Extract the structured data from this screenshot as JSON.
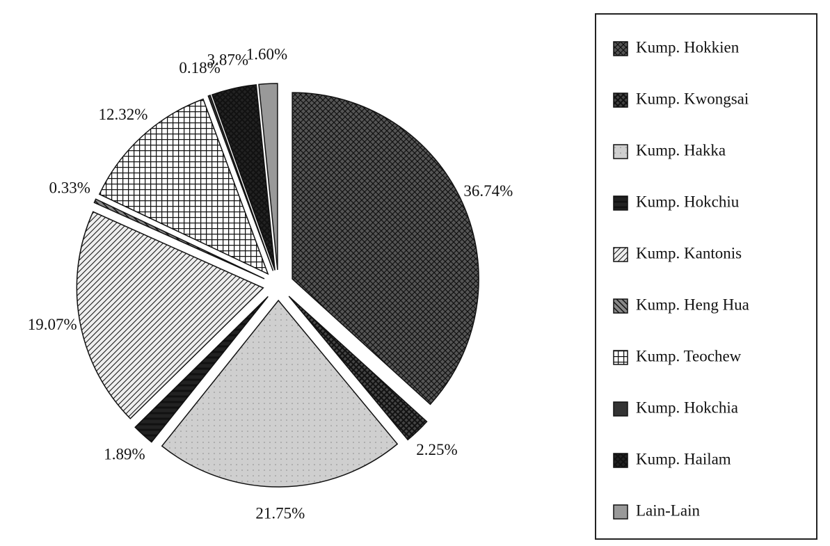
{
  "chart_data": {
    "type": "pie",
    "categories": [
      "Kump. Hokkien",
      "Kump. Kwongsai",
      "Kump. Hakka",
      "Kump. Hokchiu",
      "Kump. Kantonis",
      "Kump. Heng Hua",
      "Kump. Teochew",
      "Kump. Hokchia",
      "Kump. Hailam",
      "Lain-Lain"
    ],
    "values": [
      36.74,
      2.25,
      21.75,
      1.89,
      19.07,
      0.33,
      12.32,
      0.18,
      3.87,
      1.6
    ],
    "value_labels": [
      "36.74%",
      "2.25%",
      "21.75%",
      "1.89%",
      "19.07%",
      "0.33%",
      "12.32%",
      "0.18%",
      "3.87%",
      "1.60%"
    ],
    "colors": [
      "#555555",
      "#444444",
      "#cfcfcf",
      "#222222",
      "#eeeeee",
      "#888888",
      "#ffffff",
      "#333333",
      "#222222",
      "#999999"
    ],
    "legend": "right"
  }
}
